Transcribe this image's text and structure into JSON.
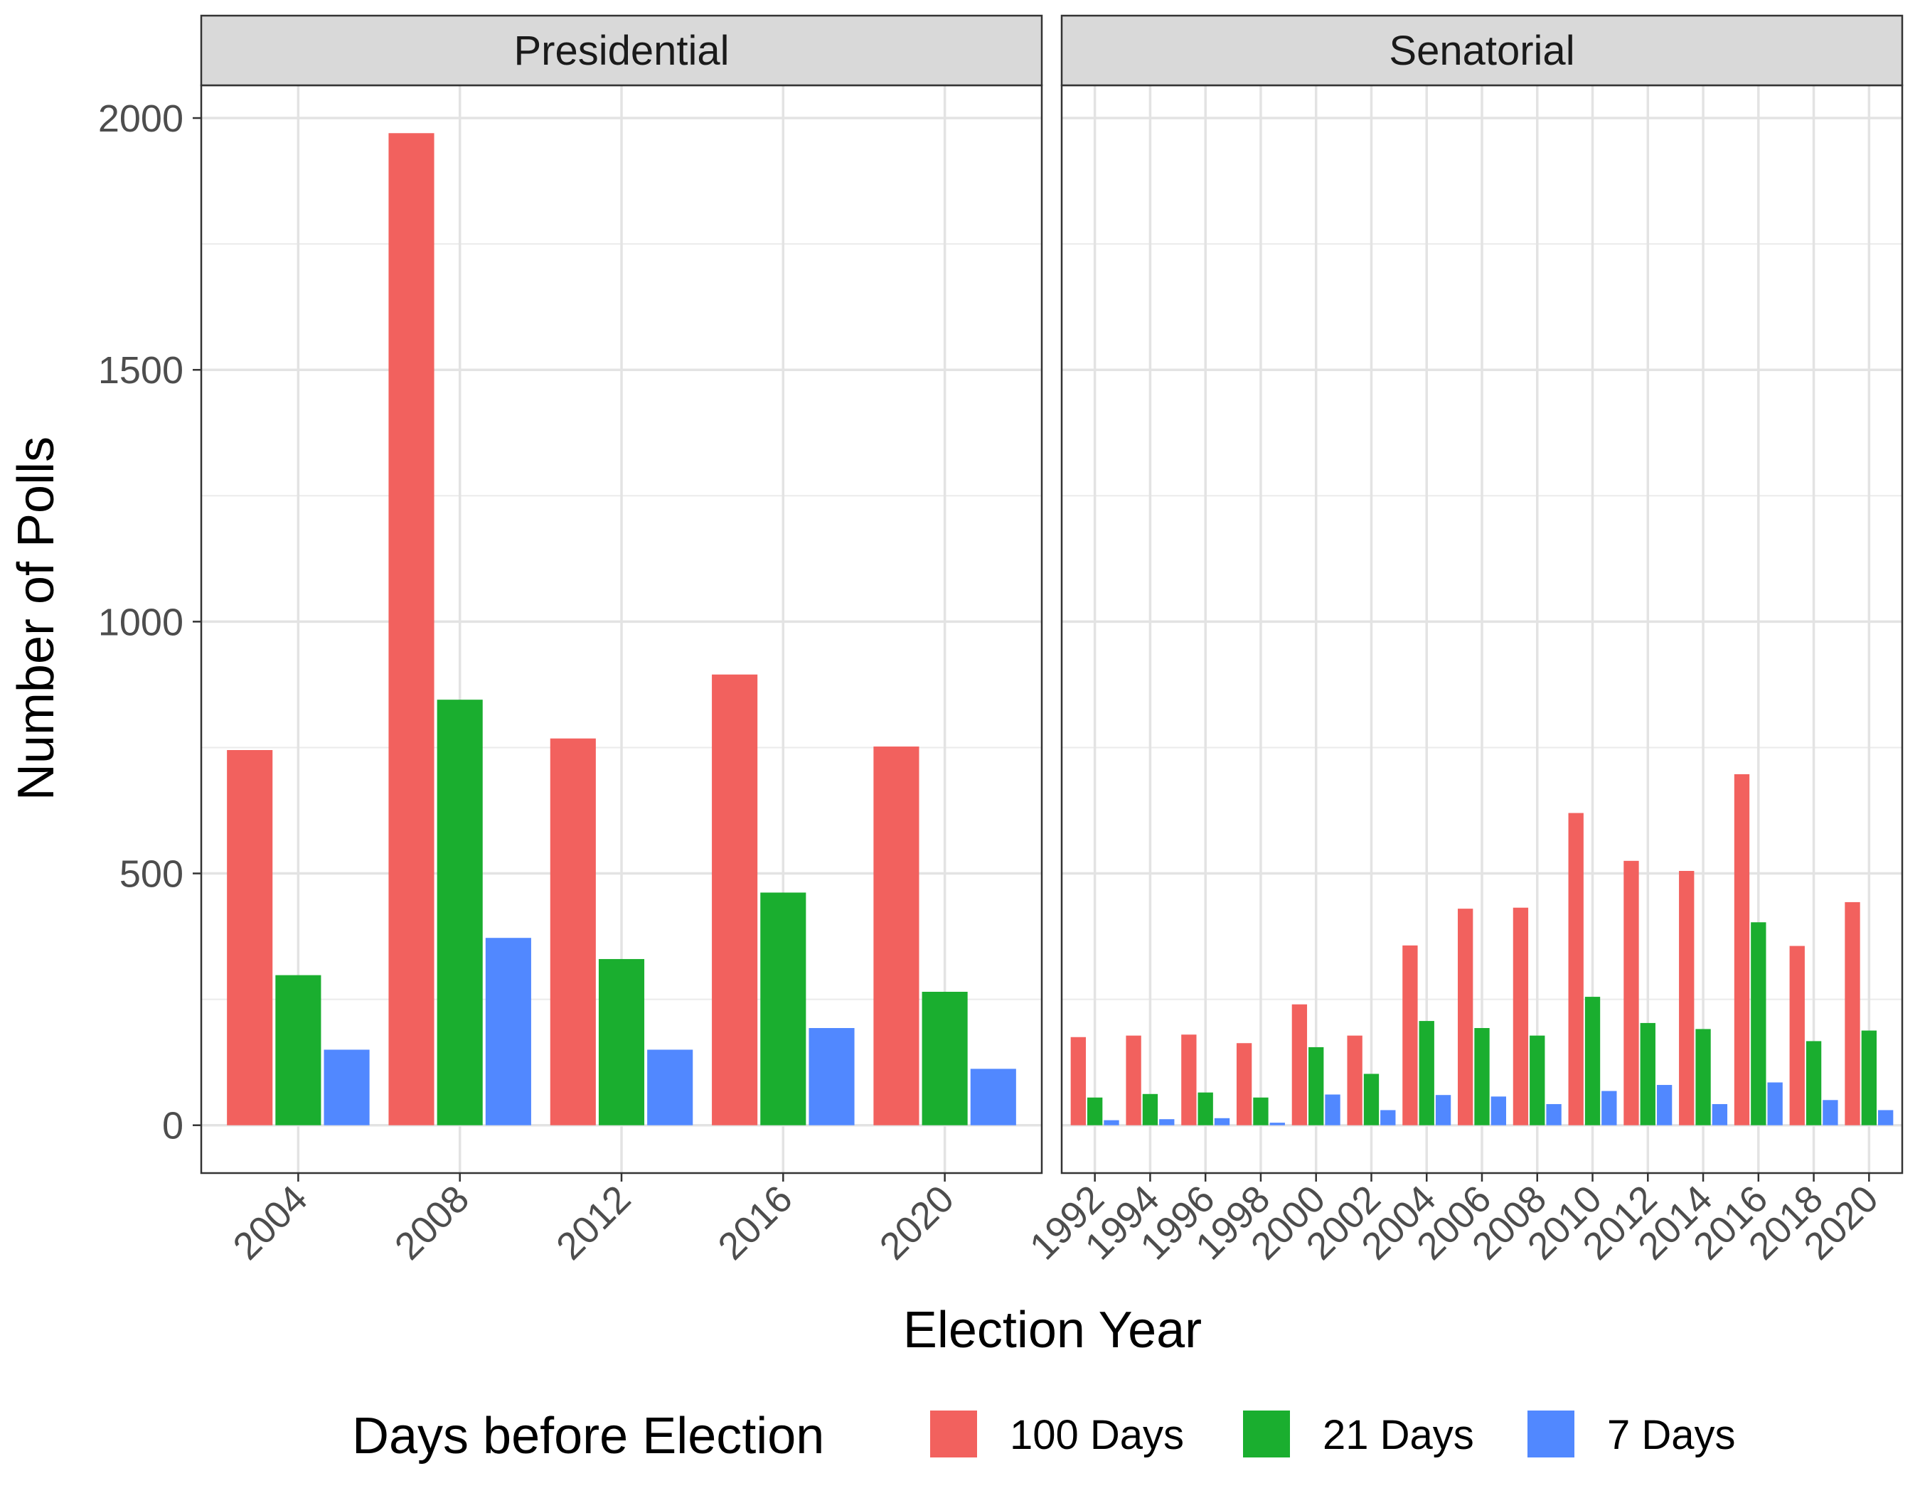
{
  "chart_data": {
    "type": "bar",
    "xlabel": "Election Year",
    "ylabel": "Number of Polls",
    "ylim": [
      -95,
      2065
    ],
    "yticks": [
      0,
      500,
      1000,
      1500,
      2000
    ],
    "legend": {
      "title": "Days before Election",
      "position": "bottom",
      "entries": [
        "100 Days",
        "21 Days",
        "7 Days"
      ]
    },
    "colors": {
      "100 Days": "#F2615E",
      "21 Days": "#1AAE2F",
      "7 Days": "#5188FF"
    },
    "grid": true,
    "panels": [
      {
        "name": "Presidential",
        "categories": [
          "2004",
          "2008",
          "2012",
          "2016",
          "2020"
        ],
        "series": [
          {
            "name": "100 Days",
            "values": [
              745,
              1970,
              768,
              895,
              752
            ]
          },
          {
            "name": "21 Days",
            "values": [
              298,
              845,
              330,
              462,
              265
            ]
          },
          {
            "name": "7 Days",
            "values": [
              150,
              372,
              150,
              193,
              112
            ]
          }
        ]
      },
      {
        "name": "Senatorial",
        "categories": [
          "1992",
          "1994",
          "1996",
          "1998",
          "2000",
          "2002",
          "2004",
          "2006",
          "2008",
          "2010",
          "2012",
          "2014",
          "2016",
          "2018",
          "2020"
        ],
        "series": [
          {
            "name": "100 Days",
            "values": [
              175,
              178,
              180,
              163,
              240,
              178,
              357,
              430,
              432,
              620,
              525,
              505,
              697,
              356,
              443
            ]
          },
          {
            "name": "21 Days",
            "values": [
              55,
              62,
              65,
              55,
              155,
              102,
              207,
              193,
              178,
              255,
              203,
              191,
              403,
              167,
              188
            ]
          },
          {
            "name": "7 Days",
            "values": [
              10,
              12,
              14,
              5,
              61,
              30,
              60,
              57,
              42,
              68,
              80,
              42,
              85,
              50,
              30
            ]
          }
        ]
      }
    ]
  }
}
